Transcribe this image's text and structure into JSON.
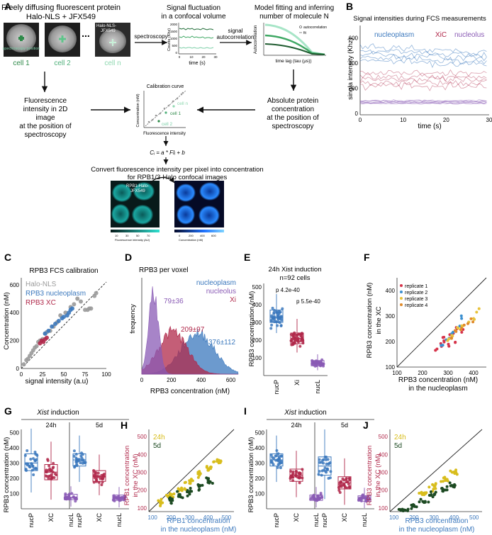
{
  "panel_letters": [
    "A",
    "B",
    "C",
    "D",
    "E",
    "F",
    "G",
    "H",
    "I",
    "J"
  ],
  "colors": {
    "nucleoplasm": "#3b78bd",
    "xi": "#b0284a",
    "nucleolus": "#8a5bb5",
    "halo": "#9a9a9a",
    "day24h": "#d8bd1c",
    "day5d": "#1d4a22",
    "cell_green": "#2f8a4a",
    "light_green": "#7dcfa8",
    "rep1": "#d6334a",
    "rep2": "#3b8fd0",
    "rep3": "#e8c23a",
    "rep4": "#e08a2a"
  },
  "panelA": {
    "title_line1": "Freely diffusing fluorescent protein",
    "title_line2": "Halo-NLS + JFX549",
    "cell1": "cell 1",
    "cell2": "cell 2",
    "celln": "cell n",
    "spectroscopy_position": "spectroscopy position",
    "halo_label_line1": "Halo-NLS-",
    "halo_label_line2": "JFX549",
    "ellipsis": "...",
    "spectroscopy_arrow": "spectroscopy",
    "signal_title_line1": "Signal fluctuation",
    "signal_title_line2": "in a confocal volume",
    "counts_label": "Counts (Khz)",
    "time_label": "time (s)",
    "signal_ticks": [
      "2000",
      "1500",
      "1000",
      "500",
      "0"
    ],
    "signal_xticks": [
      "0",
      "10",
      "20",
      "30"
    ],
    "autocorr_arrow_line1": "signal",
    "autocorr_arrow_line2": "autocorrelation",
    "model_title_line1": "Model fitting and inferring",
    "model_title_line2": "number of molecule N",
    "autocorr_ylabel": "Autocorrelation",
    "autocorr_xlabel": "time lag (tau (μs))",
    "autocorr_legend1": "autocorrelation",
    "autocorr_legend2": "fit",
    "fluor_line1": "Fluorescence",
    "fluor_line2": "intensity in 2D",
    "fluor_line3": "image",
    "fluor_line4": "at the position of",
    "fluor_line5": "spectroscopy",
    "calib_title": "Calibration curve",
    "calib_ylabel": "Concentration (nM)",
    "calib_xlabel": "Fluorescence intensity",
    "calib_cell_n": "cell n",
    "calib_cell_1": "cell 1",
    "calib_cell_2": "cell 2",
    "abs_line1": "Absolute protein",
    "abs_line2": "concentration",
    "abs_line3": "at the position of",
    "abs_line4": "spectroscopy",
    "formula": "Cᵢ = a * FIᵢ + b",
    "convert_line1": "Convert fluorescence intensity per pixel into concentration",
    "convert_line2": "for RPB1/3-Halo confocal images",
    "img_label_line1": "RPB1-Halo-",
    "img_label_line2": "JFX549",
    "cbar1_title": "Fluorescence intensity (AU)",
    "cbar1_ticks": [
      "10",
      "30",
      "50",
      "70"
    ],
    "cbar2_title": "Concentration (nM)",
    "cbar2_ticks": [
      "0",
      "200",
      "400",
      "600"
    ]
  },
  "panelB": {
    "title": "Signal intensities during FCS measurements",
    "ylabel": "singla intensity (Khz)",
    "xlabel": "time (s)",
    "legend": [
      "nucleoplasm",
      "XiC",
      "nucleolus"
    ],
    "yticks": [
      "600",
      "400",
      "200",
      "0"
    ],
    "xticks": [
      "0",
      "10",
      "20",
      "30"
    ]
  },
  "panelC": {
    "title": "RPB3 FCS calibration",
    "legend": [
      "Halo-NLS",
      "RPB3 nucleoplasm",
      "RPB3 XC"
    ],
    "ylabel": "Concentration (nM)",
    "xlabel": "signal intensity (a.u)",
    "yticks": [
      "600",
      "400",
      "200",
      "0"
    ],
    "xticks": [
      "0",
      "25",
      "50",
      "75",
      "100"
    ]
  },
  "panelD": {
    "title": "RPB3 per voxel",
    "legend": [
      "nucleoplasm",
      "nucleolus",
      "Xi"
    ],
    "ylabel": "frequency",
    "xlabel": "RPB3 concentration (nM)",
    "xticks": [
      "0",
      "200",
      "400",
      "600"
    ],
    "annot_nucleolus": "79±36",
    "annot_xi": "209±97",
    "annot_nucleoplasm": "376±112"
  },
  "panelE": {
    "title_line1": "24h Xist induction",
    "title_line2": "n=92 cells",
    "ylabel": "RPB3 concentration (nM)",
    "yticks": [
      "500",
      "400",
      "300",
      "200",
      "100"
    ],
    "categories": [
      "nucP",
      "Xi",
      "nucL"
    ],
    "p1": "p 4.2e-40",
    "p2": "p 5.5e-40"
  },
  "panelF": {
    "legend": [
      "replicate 1",
      "replicate 2",
      "replicate 3",
      "replicate 4"
    ],
    "ylabel_line1": "RPB3 concentration (nM)",
    "ylabel_line2": "in the XC",
    "xlabel_line1": "RPB3 concentration (nM)",
    "xlabel_line2": "in the nucleoplasm",
    "yticks": [
      "400",
      "300",
      "200",
      "100"
    ],
    "xticks": [
      "100",
      "200",
      "300",
      "400"
    ]
  },
  "panelG": {
    "header_italic": "Xist",
    "header_rest": " induction",
    "group1": "24h",
    "group2": "5d",
    "ylabel": "RPB3 concentration (nM)",
    "yticks": [
      "500",
      "400",
      "300",
      "200",
      "100"
    ],
    "categories": [
      "nucP",
      "XC",
      "nucL",
      "nucP",
      "XC",
      "nucL"
    ]
  },
  "panelH": {
    "legend": [
      "24h",
      "5d"
    ],
    "ylabel_line1": "RPB1 concentration",
    "ylabel_line2": "in the XC (nM)",
    "xlabel_line1": "RPB1 concentration",
    "xlabel_line2": "in the nucleoplasm (nM)",
    "yticks": [
      "500",
      "400",
      "300",
      "200",
      "100"
    ],
    "xticks": [
      "100",
      "200",
      "300",
      "400",
      "500"
    ]
  },
  "panelI": {
    "header_italic": "Xist",
    "header_rest": " induction",
    "group1": "24h",
    "group2": "5d",
    "ylabel": "RPB3 concentration (nM)",
    "yticks": [
      "500",
      "400",
      "300",
      "200",
      "100"
    ],
    "categories": [
      "nucP",
      "XC",
      "nucL",
      "nucP",
      "XC",
      "nucL"
    ]
  },
  "panelJ": {
    "legend": [
      "24h",
      "5d"
    ],
    "ylabel_line1": "RPB3 concentration",
    "ylabel_line2": "in the XC (nM)",
    "xlabel_line1": "RPB3 concentration",
    "xlabel_line2": "in the nucleoplasm (nM)",
    "yticks": [
      "500",
      "400",
      "300",
      "200",
      "100"
    ],
    "xticks": [
      "100",
      "200",
      "300",
      "400",
      "500"
    ]
  },
  "chart_data": [
    {
      "id": "B",
      "type": "line",
      "title": "Signal intensities during FCS measurements",
      "xlabel": "time (s)",
      "ylabel": "singla intensity (Khz)",
      "xlim": [
        0,
        30
      ],
      "ylim": [
        0,
        700
      ],
      "series": [
        {
          "name": "nucleoplasm",
          "mean": 480
        },
        {
          "name": "XiC",
          "mean": 270
        },
        {
          "name": "nucleolus",
          "mean": 90
        }
      ]
    },
    {
      "id": "C",
      "type": "scatter",
      "title": "RPB3 FCS calibration",
      "xlabel": "signal intensity (a.u)",
      "ylabel": "Concentration (nM)",
      "xlim": [
        0,
        100
      ],
      "ylim": [
        0,
        650
      ],
      "series": [
        {
          "name": "Halo-NLS",
          "x": [
            3,
            6,
            8,
            10,
            12,
            14,
            16,
            18,
            20,
            22,
            25,
            28,
            30,
            34,
            38,
            42,
            46,
            52,
            58,
            62,
            66,
            70,
            75,
            78,
            80,
            82,
            86,
            88
          ],
          "y": [
            30,
            60,
            70,
            90,
            110,
            130,
            150,
            160,
            190,
            200,
            210,
            250,
            260,
            270,
            300,
            330,
            380,
            400,
            440,
            460,
            500,
            480,
            420,
            420,
            430,
            430,
            520,
            540
          ]
        },
        {
          "name": "RPB3 nucleoplasm",
          "x": [
            28,
            32,
            36,
            40,
            44,
            48,
            50,
            54,
            56,
            58,
            60
          ],
          "y": [
            250,
            270,
            300,
            320,
            340,
            360,
            370,
            380,
            400,
            420,
            430
          ]
        },
        {
          "name": "RPB3 XC",
          "x": [
            22,
            24,
            26,
            28,
            30
          ],
          "y": [
            180,
            200,
            190,
            210,
            220
          ]
        }
      ]
    },
    {
      "id": "D",
      "type": "area",
      "title": "RPB3 per voxel",
      "xlabel": "RPB3 concentration (nM)",
      "ylabel": "frequency",
      "xlim": [
        0,
        650
      ],
      "series": [
        {
          "name": "nucleolus",
          "peak": 79,
          "sd": 36
        },
        {
          "name": "Xi",
          "peak": 209,
          "sd": 97
        },
        {
          "name": "nucleoplasm",
          "peak": 376,
          "sd": 112
        }
      ]
    },
    {
      "id": "E",
      "type": "box",
      "categories": [
        "nucP",
        "Xi",
        "nucL"
      ],
      "ylabel": "RPB3 concentration (nM)",
      "ylim": [
        0,
        520
      ],
      "series": [
        {
          "name": "nucP",
          "median": 330,
          "q1": 300,
          "q3": 370,
          "min": 240,
          "max": 460
        },
        {
          "name": "Xi",
          "median": 210,
          "q1": 180,
          "q3": 240,
          "min": 130,
          "max": 320
        },
        {
          "name": "nucL",
          "median": 70,
          "q1": 55,
          "q3": 85,
          "min": 30,
          "max": 120
        }
      ]
    },
    {
      "id": "F",
      "type": "scatter",
      "xlabel": "RPB3 concentration (nM) in the nucleoplasm",
      "ylabel": "RPB3 concentration (nM) in the XC",
      "xlim": [
        100,
        450
      ],
      "ylim": [
        100,
        450
      ],
      "series": [
        {
          "name": "replicate 1",
          "x": [
            260,
            270,
            280,
            290,
            300,
            310,
            320,
            330,
            340,
            350
          ],
          "y": [
            170,
            190,
            200,
            210,
            220,
            180,
            230,
            200,
            250,
            240
          ]
        },
        {
          "name": "replicate 2",
          "x": [
            280,
            300,
            320,
            340,
            360
          ],
          "y": [
            190,
            210,
            240,
            260,
            290
          ]
        },
        {
          "name": "replicate 3",
          "x": [
            300,
            320,
            340,
            360,
            380,
            400,
            420
          ],
          "y": [
            200,
            230,
            250,
            260,
            280,
            300,
            320
          ]
        },
        {
          "name": "replicate 4",
          "x": [
            310,
            330,
            350,
            370,
            390
          ],
          "y": [
            210,
            240,
            250,
            270,
            290
          ]
        }
      ]
    },
    {
      "id": "G",
      "type": "box",
      "categories": [
        "nucP",
        "XC",
        "nucL",
        "nucP",
        "XC",
        "nucL"
      ],
      "ylabel": "RPB3 concentration (nM)",
      "ylim": [
        0,
        520
      ],
      "series": [
        {
          "name": "24h nucP",
          "median": 300,
          "q1": 250,
          "q3": 360
        },
        {
          "name": "24h XC",
          "median": 240,
          "q1": 190,
          "q3": 290
        },
        {
          "name": "24h nucL",
          "median": 75,
          "q1": 60,
          "q3": 95
        },
        {
          "name": "5d nucP",
          "median": 320,
          "q1": 280,
          "q3": 360
        },
        {
          "name": "5d XC",
          "median": 210,
          "q1": 180,
          "q3": 250
        },
        {
          "name": "5d nucL",
          "median": 70,
          "q1": 55,
          "q3": 90
        }
      ]
    },
    {
      "id": "H",
      "type": "scatter",
      "xlabel": "RPB1 concentration in the nucleoplasm (nM)",
      "ylabel": "RPB1 concentration in the XC (nM)",
      "xlim": [
        80,
        540
      ],
      "ylim": [
        80,
        540
      ],
      "series": [
        {
          "name": "24h",
          "x": [
            150,
            200,
            250,
            300,
            350,
            400,
            450
          ],
          "y": [
            130,
            170,
            210,
            250,
            290,
            320,
            360
          ]
        },
        {
          "name": "5d",
          "x": [
            200,
            250,
            300,
            350,
            400
          ],
          "y": [
            140,
            170,
            190,
            220,
            250
          ]
        }
      ]
    },
    {
      "id": "I",
      "type": "box",
      "categories": [
        "nucP",
        "XC",
        "nucL",
        "nucP",
        "XC",
        "nucL"
      ],
      "ylabel": "RPB3 concentration (nM)",
      "ylim": [
        0,
        520
      ],
      "series": [
        {
          "name": "24h nucP",
          "median": 320,
          "q1": 280,
          "q3": 360
        },
        {
          "name": "24h XC",
          "median": 220,
          "q1": 180,
          "q3": 260
        },
        {
          "name": "24h nucL",
          "median": 70,
          "q1": 55,
          "q3": 90
        },
        {
          "name": "5d nucP",
          "median": 280,
          "q1": 220,
          "q3": 340
        },
        {
          "name": "5d XC",
          "median": 170,
          "q1": 130,
          "q3": 210
        },
        {
          "name": "5d nucL",
          "median": 65,
          "q1": 50,
          "q3": 85
        }
      ]
    },
    {
      "id": "J",
      "type": "scatter",
      "xlabel": "RPB3 concentration in the nucleoplasm (nM)",
      "ylabel": "RPB3 concentration in the XC (nM)",
      "xlim": [
        80,
        540
      ],
      "ylim": [
        80,
        540
      ],
      "series": [
        {
          "name": "24h",
          "x": [
            250,
            300,
            350,
            400
          ],
          "y": [
            180,
            220,
            260,
            300
          ]
        },
        {
          "name": "5d",
          "x": [
            150,
            200,
            250,
            300,
            350,
            400
          ],
          "y": [
            90,
            110,
            140,
            170,
            200,
            230
          ]
        }
      ]
    }
  ]
}
